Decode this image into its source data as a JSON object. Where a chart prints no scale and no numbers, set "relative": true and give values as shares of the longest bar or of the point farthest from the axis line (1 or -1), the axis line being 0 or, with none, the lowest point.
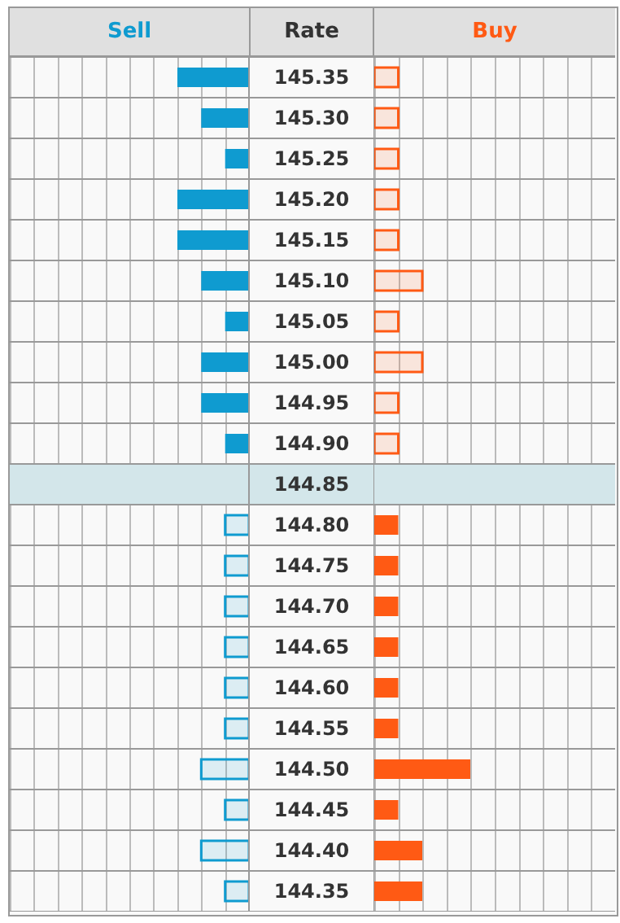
{
  "chart_data": [
    {
      "type": "bar",
      "title": "Sell",
      "ylabel": "Rate",
      "orientation": "horizontal",
      "relative": true,
      "grid": true,
      "categories": [
        "145.35",
        "145.30",
        "145.25",
        "145.20",
        "145.15",
        "145.10",
        "145.05",
        "145.00",
        "144.95",
        "144.90",
        "144.85",
        "144.80",
        "144.75",
        "144.70",
        "144.65",
        "144.60",
        "144.55",
        "144.50",
        "144.45",
        "144.40",
        "144.35"
      ],
      "series": [
        {
          "color": "#0f9bd0",
          "values": [
            1,
            0.667,
            0.333,
            1,
            1,
            0.667,
            0.333,
            0.667,
            0.667,
            0.333,
            0,
            0.333,
            0.333,
            0.333,
            0.333,
            0.333,
            0.333,
            0.667,
            0.333,
            0.667,
            0.333
          ]
        }
      ],
      "bands": [
        {
          "axis": "y",
          "from": "144.85",
          "to": "144.85",
          "color": "#d3e6ea"
        }
      ]
    },
    {
      "type": "bar",
      "title": "Buy",
      "orientation": "horizontal",
      "relative": true,
      "grid": true,
      "tick_labels": false,
      "categories": [
        "145.35",
        "145.30",
        "145.25",
        "145.20",
        "145.15",
        "145.10",
        "145.05",
        "145.00",
        "144.95",
        "144.90",
        "144.85",
        "144.80",
        "144.75",
        "144.70",
        "144.65",
        "144.60",
        "144.55",
        "144.50",
        "144.45",
        "144.40",
        "144.35"
      ],
      "series": [
        {
          "color": "#ff5a14",
          "values": [
            0.25,
            0.25,
            0.25,
            0.25,
            0.25,
            0.5,
            0.25,
            0.5,
            0.25,
            0.25,
            0,
            0.25,
            0.25,
            0.25,
            0.25,
            0.25,
            0.25,
            1,
            0.25,
            0.5,
            0.5
          ]
        }
      ],
      "bands": [
        {
          "axis": "y",
          "from": "144.85",
          "to": "144.85",
          "color": "#d3e6ea"
        }
      ]
    }
  ]
}
